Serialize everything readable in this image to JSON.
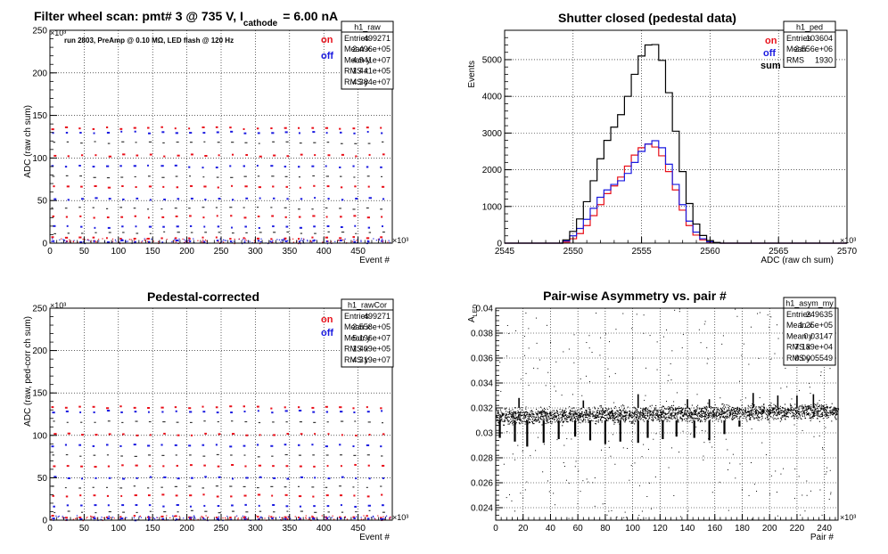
{
  "colors": {
    "on": "#e8101a",
    "off": "#1a1ae0",
    "sum": "#000000"
  },
  "chart_data": [
    {
      "id": "raw",
      "type": "scatter",
      "title_main": "Filter wheel scan: pmt#   3 @   735 V, I",
      "title_sub": "cathode",
      "title_tail": "= 6.00 nA",
      "annotation": "run 2803, PreAmp @ 0.10 MΩ, LED flash @  120 Hz",
      "xlabel": "Event #",
      "ylabel": "ADC (raw ch sum)",
      "x_exponent": "×10³",
      "y_exponent": "×10³",
      "xlim": [
        0,
        500
      ],
      "ylim": [
        0,
        250
      ],
      "xticks": [
        0,
        50,
        100,
        150,
        200,
        250,
        300,
        350,
        400,
        450
      ],
      "yticks": [
        0,
        50,
        100,
        150,
        200,
        250
      ],
      "grid": true,
      "legend": [
        {
          "name": "on",
          "color": "#e8101a"
        },
        {
          "name": "off",
          "color": "#1a1ae0"
        }
      ],
      "levels": [
        135,
        130,
        118,
        103,
        90,
        78,
        66,
        52,
        41,
        31,
        19,
        12,
        6,
        2
      ],
      "step_period": 20,
      "stats": {
        "title": "h1_raw",
        "rows": [
          {
            "k": "Entries",
            "v": "499271"
          },
          {
            "k": "Mean x",
            "v": "2.496e+05"
          },
          {
            "k": "Mean y",
            "v": "4.941e+07"
          },
          {
            "k": "RMS x",
            "v": "1.441e+05"
          },
          {
            "k": "RMS y",
            "v": "4.384e+07"
          }
        ]
      }
    },
    {
      "id": "ped",
      "type": "line",
      "title": "Shutter closed (pedestal data)",
      "xlabel": "ADC (raw ch sum)",
      "ylabel": "Events",
      "x_exponent": "×10³",
      "xlim": [
        2545,
        2570
      ],
      "ylim": [
        0,
        5800
      ],
      "xticks": [
        2545,
        2550,
        2555,
        2560,
        2565,
        2570
      ],
      "yticks": [
        0,
        1000,
        2000,
        3000,
        4000,
        5000
      ],
      "grid": true,
      "legend": [
        {
          "name": "on",
          "color": "#e8101a"
        },
        {
          "name": "off",
          "color": "#1a1ae0"
        },
        {
          "name": "sum",
          "color": "#000000"
        }
      ],
      "bin_x": [
        2549.5,
        2550.0,
        2550.5,
        2551.0,
        2551.5,
        2552.0,
        2552.5,
        2553.0,
        2553.5,
        2554.0,
        2554.5,
        2555.0,
        2555.5,
        2556.0,
        2556.5,
        2557.0,
        2557.5,
        2558.0,
        2558.5,
        2559.0,
        2559.5,
        2560.0,
        2560.5,
        2561.0
      ],
      "series": [
        {
          "name": "on",
          "color": "#e8101a",
          "values": [
            30,
            120,
            260,
            480,
            750,
            1050,
            1350,
            1560,
            1800,
            2100,
            2400,
            2600,
            2700,
            2620,
            2380,
            1950,
            1450,
            900,
            480,
            220,
            90,
            30,
            8,
            0
          ]
        },
        {
          "name": "off",
          "color": "#1a1ae0",
          "values": [
            60,
            200,
            400,
            650,
            950,
            1250,
            1450,
            1600,
            1700,
            1900,
            2200,
            2500,
            2700,
            2790,
            2600,
            2150,
            1600,
            1050,
            600,
            300,
            120,
            40,
            10,
            0
          ]
        },
        {
          "name": "sum",
          "color": "#000000",
          "values": [
            90,
            320,
            660,
            1130,
            1700,
            2300,
            2800,
            3160,
            3500,
            4000,
            4600,
            5100,
            5400,
            5410,
            4980,
            4100,
            3050,
            1950,
            1080,
            520,
            210,
            70,
            18,
            0
          ]
        }
      ],
      "stats": {
        "title": "h1_ped",
        "rows": [
          {
            "k": "Entries",
            "v": "103604"
          },
          {
            "k": "Mean",
            "v": "2.556e+06"
          },
          {
            "k": "RMS",
            "v": "1930"
          }
        ]
      }
    },
    {
      "id": "rawcor",
      "type": "scatter",
      "title": "Pedestal-corrected",
      "xlabel": "Event #",
      "ylabel": "ADC (raw, ped-corr ch sum)",
      "x_exponent": "×10³",
      "y_exponent": "×10³",
      "xlim": [
        0,
        500
      ],
      "ylim": [
        0,
        250
      ],
      "xticks": [
        0,
        50,
        100,
        150,
        200,
        250,
        300,
        350,
        400,
        450
      ],
      "yticks": [
        0,
        50,
        100,
        150,
        200,
        250
      ],
      "grid": true,
      "legend": [
        {
          "name": "on",
          "color": "#e8101a"
        },
        {
          "name": "off",
          "color": "#1a1ae0"
        }
      ],
      "levels": [
        133,
        128,
        116,
        101,
        88,
        76,
        64,
        50,
        39,
        29,
        17,
        10,
        4,
        1
      ],
      "step_period": 20,
      "stats": {
        "title": "h1_rawCor",
        "rows": [
          {
            "k": "Entries",
            "v": "499271"
          },
          {
            "k": "Mean x",
            "v": "2.558e+05"
          },
          {
            "k": "Mean y",
            "v": "5.196e+07"
          },
          {
            "k": "RMS x",
            "v": "1.409e+05"
          },
          {
            "k": "RMS y",
            "v": "4.319e+07"
          }
        ]
      }
    },
    {
      "id": "asym",
      "type": "scatter",
      "title": "Pair-wise Asymmetry vs. pair #",
      "xlabel": "Pair #",
      "ylabel_main": "A",
      "ylabel_sub": "LED",
      "x_exponent": "×10³",
      "xlim": [
        0,
        250
      ],
      "ylim": [
        0.023,
        0.04
      ],
      "xticks": [
        0,
        20,
        40,
        60,
        80,
        100,
        120,
        140,
        160,
        180,
        200,
        220,
        240
      ],
      "yticks": [
        0.024,
        0.026,
        0.028,
        0.03,
        0.032,
        0.034,
        0.036,
        0.038,
        0.04
      ],
      "grid": true,
      "band": {
        "x": [
          0,
          250
        ],
        "y_start": [
          0.0313,
          0.0318
        ],
        "spread": 0.0006
      },
      "dips": [
        {
          "x": 3,
          "y": 0.0296
        },
        {
          "x": 14,
          "y": 0.0293
        },
        {
          "x": 23,
          "y": 0.0289
        },
        {
          "x": 35,
          "y": 0.0292
        },
        {
          "x": 46,
          "y": 0.0295
        },
        {
          "x": 58,
          "y": 0.0297
        },
        {
          "x": 69,
          "y": 0.0294
        },
        {
          "x": 80,
          "y": 0.0291
        },
        {
          "x": 91,
          "y": 0.0293
        },
        {
          "x": 104,
          "y": 0.0292
        },
        {
          "x": 111,
          "y": 0.0296
        },
        {
          "x": 122,
          "y": 0.0295
        },
        {
          "x": 132,
          "y": 0.0297
        },
        {
          "x": 145,
          "y": 0.0296
        },
        {
          "x": 156,
          "y": 0.0294
        },
        {
          "x": 167,
          "y": 0.0299
        },
        {
          "x": 178,
          "y": 0.0305
        }
      ],
      "spikes": [
        {
          "x": 17,
          "y": 0.0328
        },
        {
          "x": 64,
          "y": 0.0326
        },
        {
          "x": 104,
          "y": 0.0331
        },
        {
          "x": 140,
          "y": 0.0327
        },
        {
          "x": 156,
          "y": 0.0327
        },
        {
          "x": 188,
          "y": 0.0332
        },
        {
          "x": 206,
          "y": 0.033
        },
        {
          "x": 220,
          "y": 0.033
        },
        {
          "x": 232,
          "y": 0.0331
        }
      ],
      "stats": {
        "title": "h1_asym_my",
        "rows": [
          {
            "k": "Entries",
            "v": "249635"
          },
          {
            "k": "Mean x",
            "v": "1.25e+05"
          },
          {
            "k": "Mean y",
            "v": "0.03147"
          },
          {
            "k": "RMS x",
            "v": "7.189e+04"
          },
          {
            "k": "RMS y",
            "v": "0.0005549"
          }
        ]
      }
    }
  ]
}
